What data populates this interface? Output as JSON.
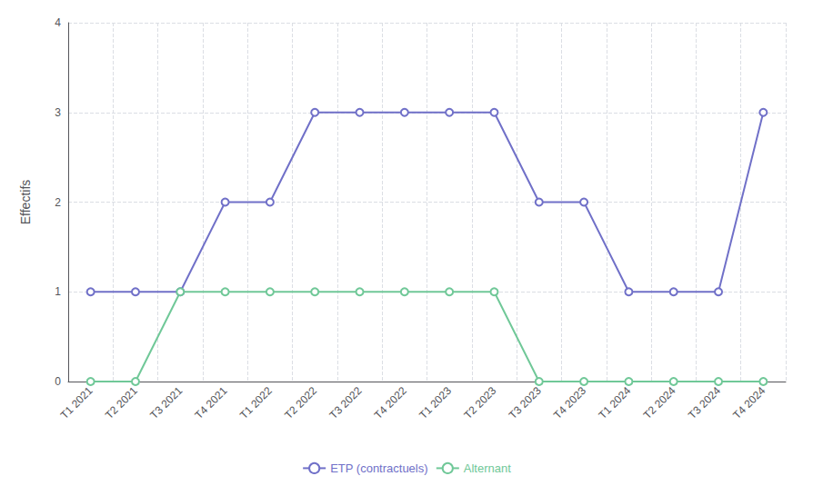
{
  "chart_data": {
    "type": "line",
    "ylabel": "Effectifs",
    "categories": [
      "T1 2021",
      "T2 2021",
      "T3 2021",
      "T4 2021",
      "T1 2022",
      "T2 2022",
      "T3 2022",
      "T4 2022",
      "T1 2023",
      "T2 2023",
      "T3 2023",
      "T4 2023",
      "T1 2024",
      "T2 2024",
      "T3 2024",
      "T4 2024"
    ],
    "series": [
      {
        "name": "ETP (contractuels)",
        "color": "#7070c8",
        "values": [
          1,
          1,
          1,
          2,
          2,
          3,
          3,
          3,
          3,
          3,
          2,
          2,
          1,
          1,
          1,
          3
        ]
      },
      {
        "name": "Alternant",
        "color": "#70c898",
        "values": [
          0,
          0,
          1,
          1,
          1,
          1,
          1,
          1,
          1,
          1,
          0,
          0,
          0,
          0,
          0,
          0
        ]
      }
    ],
    "ylim": [
      0,
      4
    ],
    "yticks": [
      0,
      1,
      2,
      3,
      4
    ],
    "grid": true,
    "legend": "bottom",
    "marker": "circle"
  }
}
